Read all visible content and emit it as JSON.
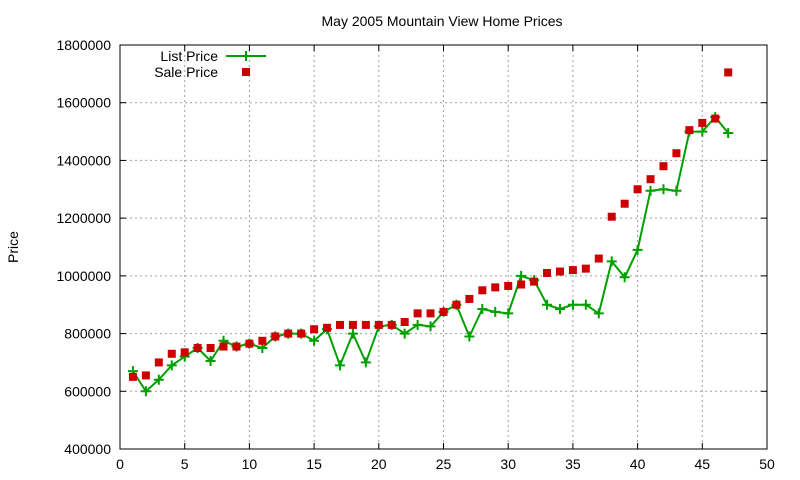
{
  "chart_data": {
    "type": "line",
    "title": "May 2005 Mountain View Home Prices",
    "xlabel": "",
    "ylabel": "Price",
    "xlim": [
      0,
      50
    ],
    "ylim": [
      400000,
      1800000
    ],
    "x_ticks": [
      0,
      5,
      10,
      15,
      20,
      25,
      30,
      35,
      40,
      45,
      50
    ],
    "y_ticks": [
      400000,
      600000,
      800000,
      1000000,
      1200000,
      1400000,
      1600000,
      1800000
    ],
    "grid": true,
    "legend_position": "top-left",
    "series": [
      {
        "name": "List Price",
        "style": "line-with-plus-markers",
        "color": "#00a000",
        "x": [
          1,
          2,
          3,
          4,
          5,
          6,
          7,
          8,
          9,
          10,
          11,
          12,
          13,
          14,
          15,
          16,
          17,
          18,
          19,
          20,
          21,
          22,
          23,
          24,
          25,
          26,
          27,
          28,
          29,
          30,
          31,
          32,
          33,
          34,
          35,
          36,
          37,
          38,
          39,
          40,
          41,
          42,
          43,
          44,
          45,
          46,
          47
        ],
        "values": [
          670000,
          600000,
          640000,
          690000,
          720000,
          750000,
          705000,
          775000,
          755000,
          765000,
          750000,
          790000,
          800000,
          800000,
          775000,
          815000,
          690000,
          800000,
          700000,
          825000,
          830000,
          800000,
          830000,
          825000,
          875000,
          900000,
          790000,
          885000,
          875000,
          870000,
          1000000,
          985000,
          900000,
          885000,
          900000,
          900000,
          870000,
          1050000,
          995000,
          1090000,
          1295000,
          1300000,
          1295000,
          1500000,
          1500000,
          1550000,
          1495000
        ]
      },
      {
        "name": "Sale Price",
        "style": "square-markers",
        "color": "#cc0000",
        "x": [
          1,
          2,
          3,
          4,
          5,
          6,
          7,
          8,
          9,
          10,
          11,
          12,
          13,
          14,
          15,
          16,
          17,
          18,
          19,
          20,
          21,
          22,
          23,
          24,
          25,
          26,
          27,
          28,
          29,
          30,
          31,
          32,
          33,
          34,
          35,
          36,
          37,
          38,
          39,
          40,
          41,
          42,
          43,
          44,
          45,
          46,
          47
        ],
        "values": [
          650000,
          655000,
          700000,
          730000,
          735000,
          750000,
          750000,
          755000,
          755000,
          765000,
          775000,
          790000,
          800000,
          800000,
          815000,
          820000,
          830000,
          830000,
          830000,
          830000,
          830000,
          840000,
          870000,
          870000,
          875000,
          900000,
          920000,
          950000,
          960000,
          965000,
          970000,
          980000,
          1010000,
          1015000,
          1020000,
          1025000,
          1060000,
          1205000,
          1250000,
          1300000,
          1335000,
          1380000,
          1425000,
          1505000,
          1530000,
          1545000,
          1705000
        ]
      }
    ]
  }
}
